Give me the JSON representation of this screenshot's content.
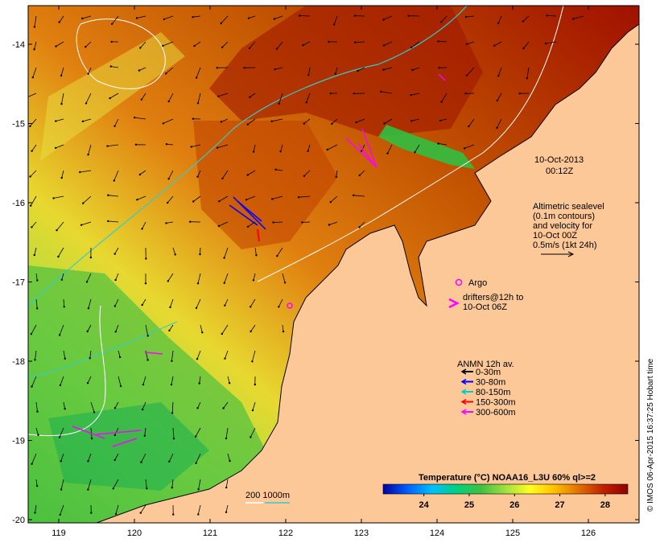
{
  "map": {
    "lon_ticks": [
      "119",
      "120",
      "121",
      "122",
      "123",
      "124",
      "125",
      "126"
    ],
    "lat_ticks": [
      "-14",
      "-15",
      "-16",
      "-17",
      "-18",
      "-19",
      "-20"
    ],
    "date_label": "10-Oct-2013",
    "time_label": "00:12Z",
    "altimetry_lines": [
      "Altimetric sealevel",
      "(0.1m contours)",
      "and velocity for",
      "10-Oct 00Z",
      "0.5m/s (1kt 24h)"
    ],
    "argo_label": "Argo",
    "drifters_lines": [
      "drifters@12h to",
      "10-Oct 06Z"
    ],
    "anmn_title": "ANMN 12h av.",
    "anmn_legend": [
      {
        "label": "0-30m",
        "color": "#000000"
      },
      {
        "label": "30-80m",
        "color": "#0000ff"
      },
      {
        "label": "80-150m",
        "color": "#00cccc"
      },
      {
        "label": "150-300m",
        "color": "#ff0000"
      },
      {
        "label": "300-600m",
        "color": "#ff00ff"
      }
    ],
    "isobath_label": "200  1000m",
    "isobath_colors": {
      "200m": "#ffffff",
      "1000m": "#33cccc"
    },
    "land_color": "#fdc898",
    "colorbar": {
      "title": "Temperature (°C) NOAA16_L3U 60% ql>=2",
      "ticks": [
        "24",
        "25",
        "26",
        "27",
        "28"
      ],
      "range": [
        23.1,
        28.5
      ],
      "stops": [
        "#0000a0",
        "#0060ff",
        "#00c0ff",
        "#00d080",
        "#40c040",
        "#a0e040",
        "#ffff20",
        "#ffc000",
        "#e07000",
        "#c02000",
        "#900000"
      ]
    },
    "credit": "© IMOS 06-Apr-2015 16:37:25 Hobart time"
  }
}
